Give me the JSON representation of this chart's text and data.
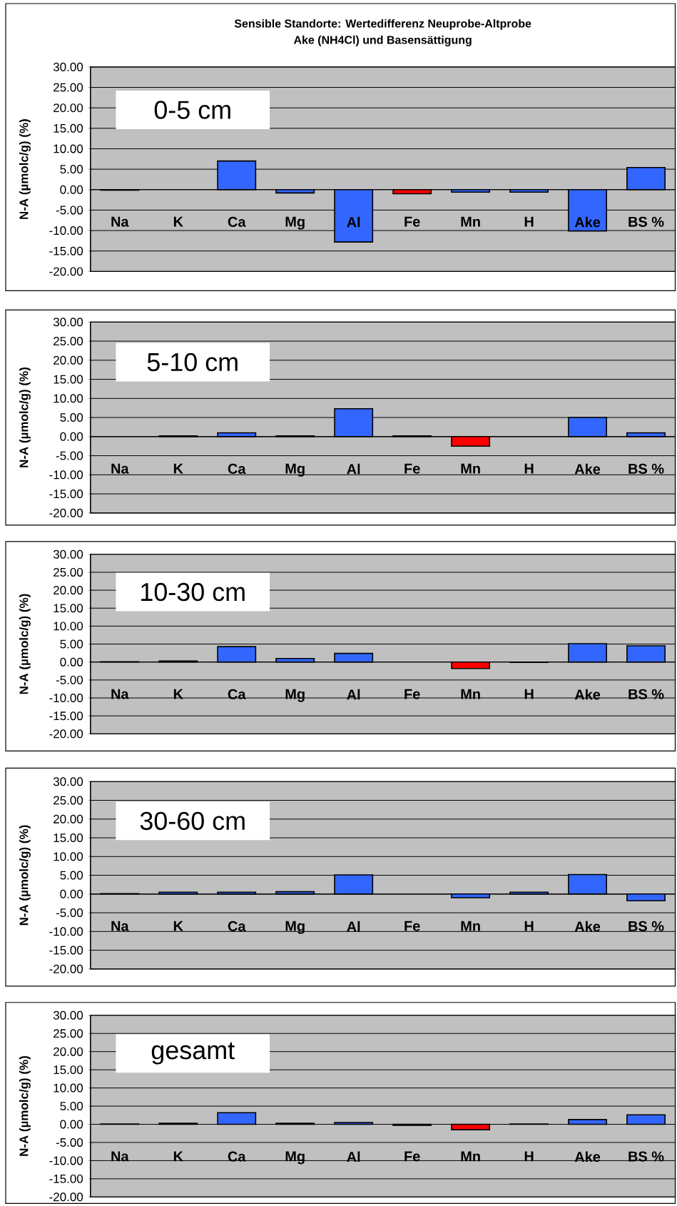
{
  "chart_data": [
    {
      "type": "bar",
      "title": "Sensible Standorte:  Wertedifferenz Neuprobe-Altprobe",
      "subtitle": "Ake (NH4Cl) und Basensättigung",
      "ylabel": "N-A (µmolc/g) (%)",
      "annotations": [
        "0-5 cm"
      ],
      "categories": [
        "Na",
        "K",
        "Ca",
        "Mg",
        "Al",
        "Fe",
        "Mn",
        "H",
        "Ake",
        "BS %"
      ],
      "values": [
        -0.1,
        null,
        7.0,
        -0.8,
        -12.8,
        -1.0,
        -0.6,
        -0.6,
        -10.1,
        5.4
      ],
      "colors": [
        "#3366ff",
        "#3366ff",
        "#3366ff",
        "#3366ff",
        "#3366ff",
        "#ff0000",
        "#3366ff",
        "#3366ff",
        "#3366ff",
        "#3366ff"
      ],
      "ylim": [
        -20,
        30
      ],
      "yticks": [
        {
          "value": 30,
          "label": "30.00"
        },
        {
          "value": 25,
          "label": "25.00"
        },
        {
          "value": 20,
          "label": "20.00"
        },
        {
          "value": 15,
          "label": "15.00"
        },
        {
          "value": 10,
          "label": "10.00"
        },
        {
          "value": 5,
          "label": "5.00"
        },
        {
          "value": 0,
          "label": "0.00"
        },
        {
          "value": -5,
          "label": "-5.00"
        },
        {
          "value": -10,
          "label": "-10.00"
        },
        {
          "value": -15,
          "label": "-15.00"
        },
        {
          "value": -20,
          "label": "-20.00"
        }
      ],
      "grid": "y"
    },
    {
      "type": "bar",
      "ylabel": "N-A (µmolc/g) (%)",
      "annotations": [
        "5-10 cm"
      ],
      "categories": [
        "Na",
        "K",
        "Ca",
        "Mg",
        "Al",
        "Fe",
        "Mn",
        "H",
        "Ake",
        "BS %"
      ],
      "values": [
        null,
        0.2,
        1.0,
        0.2,
        7.3,
        0.2,
        -2.5,
        null,
        5.0,
        1.0
      ],
      "colors": [
        "#3366ff",
        "#3366ff",
        "#3366ff",
        "#3366ff",
        "#3366ff",
        "#3366ff",
        "#ff0000",
        "#3366ff",
        "#3366ff",
        "#3366ff"
      ],
      "ylim": [
        -20,
        30
      ],
      "yticks": [
        {
          "value": 30,
          "label": "30.00"
        },
        {
          "value": 25,
          "label": "25.00"
        },
        {
          "value": 20,
          "label": "20.00"
        },
        {
          "value": 15,
          "label": "15.00"
        },
        {
          "value": 10,
          "label": "10.00"
        },
        {
          "value": 5,
          "label": "5.00"
        },
        {
          "value": 0,
          "label": "0.00"
        },
        {
          "value": -5,
          "label": "-5.00"
        },
        {
          "value": -10,
          "label": "-10.00"
        },
        {
          "value": -15,
          "label": "-15.00"
        },
        {
          "value": -20,
          "label": "-20.00"
        }
      ],
      "grid": "y"
    },
    {
      "type": "bar",
      "ylabel": "N-A (µmolc/g) (%)",
      "annotations": [
        "10-30 cm"
      ],
      "categories": [
        "Na",
        "K",
        "Ca",
        "Mg",
        "Al",
        "Fe",
        "Mn",
        "H",
        "Ake",
        "BS %"
      ],
      "values": [
        0.1,
        0.3,
        4.3,
        1.0,
        2.4,
        null,
        -1.8,
        -0.1,
        5.1,
        4.5
      ],
      "colors": [
        "#3366ff",
        "#3366ff",
        "#3366ff",
        "#3366ff",
        "#3366ff",
        "#3366ff",
        "#ff0000",
        "#3366ff",
        "#3366ff",
        "#3366ff"
      ],
      "ylim": [
        -20,
        30
      ],
      "yticks": [
        {
          "value": 30,
          "label": "30.00"
        },
        {
          "value": 25,
          "label": "25.00"
        },
        {
          "value": 20,
          "label": "20.00"
        },
        {
          "value": 15,
          "label": "15.00"
        },
        {
          "value": 10,
          "label": "10.00"
        },
        {
          "value": 5,
          "label": "5.00"
        },
        {
          "value": 0,
          "label": "0.00"
        },
        {
          "value": -5,
          "label": "-5.00"
        },
        {
          "value": -10,
          "label": "-10.00"
        },
        {
          "value": -15,
          "label": "-15.00"
        },
        {
          "value": -20,
          "label": "-20.00"
        }
      ],
      "grid": "y"
    },
    {
      "type": "bar",
      "ylabel": "N-A (µmolc/g) (%)",
      "annotations": [
        "30-60 cm"
      ],
      "categories": [
        "Na",
        "K",
        "Ca",
        "Mg",
        "Al",
        "Fe",
        "Mn",
        "H",
        "Ake",
        "BS %"
      ],
      "values": [
        0.1,
        0.5,
        0.5,
        0.6,
        5.1,
        null,
        -1.0,
        0.5,
        5.2,
        -1.8
      ],
      "colors": [
        "#3366ff",
        "#3366ff",
        "#3366ff",
        "#3366ff",
        "#3366ff",
        "#3366ff",
        "#3366ff",
        "#3366ff",
        "#3366ff",
        "#3366ff"
      ],
      "ylim": [
        -20,
        30
      ],
      "yticks": [
        {
          "value": 30,
          "label": "30.00"
        },
        {
          "value": 25,
          "label": "25.00"
        },
        {
          "value": 20,
          "label": "20.00"
        },
        {
          "value": 15,
          "label": "15.00"
        },
        {
          "value": 10,
          "label": "10.00"
        },
        {
          "value": 5,
          "label": "5.00"
        },
        {
          "value": 0,
          "label": "0.00"
        },
        {
          "value": -5,
          "label": "-5.00"
        },
        {
          "value": -10,
          "label": "-10.00"
        },
        {
          "value": -15,
          "label": "-15.00"
        },
        {
          "value": -20,
          "label": "-20.00"
        }
      ],
      "grid": "y"
    },
    {
      "type": "bar",
      "ylabel": "N-A (µmolc/g) (%)",
      "annotations": [
        "gesamt"
      ],
      "categories": [
        "Na",
        "K",
        "Ca",
        "Mg",
        "Al",
        "Fe",
        "Mn",
        "H",
        "Ake",
        "BS %"
      ],
      "values": [
        0.1,
        0.3,
        3.2,
        0.3,
        0.5,
        -0.3,
        -1.5,
        0.1,
        1.3,
        2.6
      ],
      "colors": [
        "#3366ff",
        "#3366ff",
        "#3366ff",
        "#3366ff",
        "#3366ff",
        "#3366ff",
        "#ff0000",
        "#3366ff",
        "#3366ff",
        "#3366ff"
      ],
      "ylim": [
        -20,
        30
      ],
      "yticks": [
        {
          "value": 30,
          "label": "30.00"
        },
        {
          "value": 25,
          "label": "25.00"
        },
        {
          "value": 20,
          "label": "20.00"
        },
        {
          "value": 15,
          "label": "15.00"
        },
        {
          "value": 10,
          "label": "10.00"
        },
        {
          "value": 5,
          "label": "5.00"
        },
        {
          "value": 0,
          "label": "0.00"
        },
        {
          "value": -5,
          "label": "-5.00"
        },
        {
          "value": -10,
          "label": "-10.00"
        },
        {
          "value": -15,
          "label": "-15.00"
        },
        {
          "value": -20,
          "label": "-20.00"
        }
      ],
      "grid": "y"
    }
  ]
}
